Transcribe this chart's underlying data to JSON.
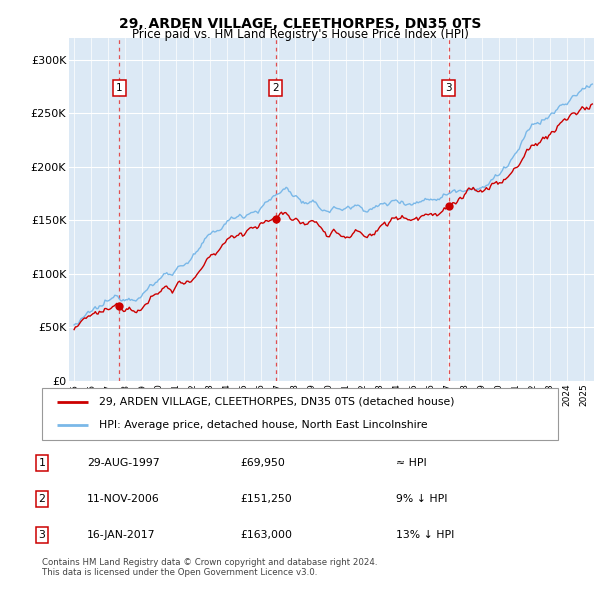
{
  "title": "29, ARDEN VILLAGE, CLEETHORPES, DN35 0TS",
  "subtitle": "Price paid vs. HM Land Registry's House Price Index (HPI)",
  "ylim": [
    0,
    320000
  ],
  "yticks": [
    0,
    50000,
    100000,
    150000,
    200000,
    250000,
    300000
  ],
  "ytick_labels": [
    "£0",
    "£50K",
    "£100K",
    "£150K",
    "£200K",
    "£250K",
    "£300K"
  ],
  "bg_color": "#dce9f5",
  "hpi_color": "#7ab8e8",
  "sale_color": "#cc0000",
  "vline_color": "#e05050",
  "marker_color": "#cc0000",
  "sale_points": [
    {
      "date": 1997.66,
      "price": 69950,
      "label": "1"
    },
    {
      "date": 2006.86,
      "price": 151250,
      "label": "2"
    },
    {
      "date": 2017.04,
      "price": 163000,
      "label": "3"
    }
  ],
  "legend_entries": [
    "29, ARDEN VILLAGE, CLEETHORPES, DN35 0TS (detached house)",
    "HPI: Average price, detached house, North East Lincolnshire"
  ],
  "table_rows": [
    {
      "num": "1",
      "date": "29-AUG-1997",
      "price": "£69,950",
      "rel": "≈ HPI"
    },
    {
      "num": "2",
      "date": "11-NOV-2006",
      "price": "£151,250",
      "rel": "9% ↓ HPI"
    },
    {
      "num": "3",
      "date": "16-JAN-2017",
      "price": "£163,000",
      "rel": "13% ↓ HPI"
    }
  ],
  "footer": "Contains HM Land Registry data © Crown copyright and database right 2024.\nThis data is licensed under the Open Government Licence v3.0."
}
